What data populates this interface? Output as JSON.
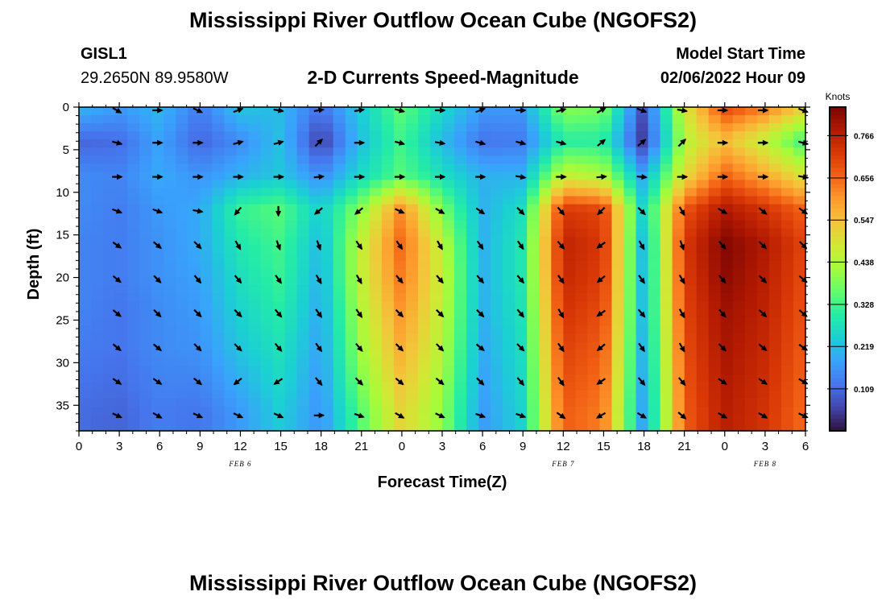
{
  "header": {
    "title": "Mississippi River Outflow Ocean Cube (NGOFS2)",
    "station": "GISL1",
    "coordinates": "29.2650N  89.9580W",
    "subtitle": "2-D Currents Speed-Magnitude",
    "model_start_label": "Model Start Time",
    "model_start_value": "02/06/2022 Hour 09"
  },
  "footer": {
    "title": "Mississippi River Outflow Ocean Cube (NGOFS2)"
  },
  "chart_data": {
    "type": "heatmap",
    "xlabel": "Forecast Time(Z)",
    "ylabel": "Depth (ft)",
    "x_unit": "hours from 00Z Feb 6",
    "xlim": [
      0,
      54
    ],
    "ylim": [
      0,
      38
    ],
    "y_inverted": true,
    "x_ticks": [
      0,
      3,
      6,
      9,
      12,
      15,
      18,
      21,
      24,
      27,
      30,
      33,
      36,
      39,
      42,
      45,
      48,
      51,
      54
    ],
    "x_tick_labels": [
      "0",
      "3",
      "6",
      "9",
      "12",
      "15",
      "18",
      "21",
      "0",
      "3",
      "6",
      "9",
      "12",
      "15",
      "18",
      "21",
      "0",
      "3",
      "6"
    ],
    "y_ticks": [
      0,
      5,
      10,
      15,
      20,
      25,
      30,
      35
    ],
    "y_tick_labels": [
      "0",
      "5",
      "10",
      "15",
      "20",
      "25",
      "30",
      "35"
    ],
    "date_labels": [
      {
        "x": 12,
        "text": "FEB 6"
      },
      {
        "x": 36,
        "text": "FEB 7"
      },
      {
        "x": 51,
        "text": "FEB 8"
      }
    ],
    "colorbar": {
      "unit": "Knots",
      "min": 0.0,
      "max": 0.84,
      "tick_values": [
        0.109,
        0.219,
        0.328,
        0.438,
        0.547,
        0.656,
        0.766
      ],
      "tick_labels": [
        "0.109",
        "0.219",
        "0.328",
        "0.438",
        "0.547",
        "0.656",
        "0.766"
      ],
      "colormap": [
        "#30123b",
        "#4145ab",
        "#4675ed",
        "#39a2fc",
        "#1bcfd4",
        "#24eca6",
        "#61fc6c",
        "#a4fc3b",
        "#d1e834",
        "#f3c63a",
        "#fe9b2d",
        "#f36315",
        "#d93806",
        "#b11901",
        "#7a0403"
      ]
    },
    "speed_grid": {
      "times": [
        0,
        3,
        6,
        9,
        12,
        15,
        18,
        21,
        24,
        27,
        30,
        33,
        36,
        39,
        42,
        45,
        48,
        51,
        54
      ],
      "depths": [
        0,
        4,
        8,
        12,
        16,
        20,
        24,
        28,
        32,
        36
      ],
      "values": [
        [
          0.21,
          0.17,
          0.21,
          0.13,
          0.23,
          0.21,
          0.12,
          0.24,
          0.36,
          0.26,
          0.17,
          0.17,
          0.4,
          0.38,
          0.07,
          0.48,
          0.7,
          0.64,
          0.52
        ],
        [
          0.1,
          0.11,
          0.18,
          0.1,
          0.15,
          0.22,
          0.05,
          0.22,
          0.33,
          0.21,
          0.12,
          0.13,
          0.3,
          0.3,
          0.04,
          0.44,
          0.55,
          0.45,
          0.32
        ],
        [
          0.15,
          0.14,
          0.19,
          0.16,
          0.2,
          0.23,
          0.15,
          0.26,
          0.35,
          0.27,
          0.2,
          0.2,
          0.46,
          0.43,
          0.18,
          0.5,
          0.66,
          0.58,
          0.48
        ],
        [
          0.15,
          0.13,
          0.17,
          0.19,
          0.32,
          0.35,
          0.24,
          0.4,
          0.62,
          0.38,
          0.2,
          0.27,
          0.72,
          0.7,
          0.24,
          0.68,
          0.78,
          0.73,
          0.66
        ],
        [
          0.14,
          0.13,
          0.16,
          0.19,
          0.29,
          0.33,
          0.21,
          0.46,
          0.66,
          0.45,
          0.2,
          0.29,
          0.76,
          0.72,
          0.2,
          0.72,
          0.83,
          0.78,
          0.7
        ],
        [
          0.14,
          0.13,
          0.16,
          0.18,
          0.27,
          0.32,
          0.2,
          0.46,
          0.64,
          0.46,
          0.2,
          0.29,
          0.75,
          0.71,
          0.2,
          0.71,
          0.82,
          0.77,
          0.69
        ],
        [
          0.14,
          0.12,
          0.15,
          0.17,
          0.25,
          0.3,
          0.19,
          0.44,
          0.61,
          0.45,
          0.2,
          0.28,
          0.73,
          0.69,
          0.2,
          0.7,
          0.8,
          0.76,
          0.68
        ],
        [
          0.13,
          0.12,
          0.15,
          0.16,
          0.23,
          0.28,
          0.18,
          0.42,
          0.58,
          0.44,
          0.19,
          0.27,
          0.71,
          0.67,
          0.19,
          0.69,
          0.79,
          0.75,
          0.67
        ],
        [
          0.12,
          0.11,
          0.14,
          0.14,
          0.2,
          0.26,
          0.17,
          0.39,
          0.55,
          0.42,
          0.18,
          0.26,
          0.69,
          0.65,
          0.18,
          0.68,
          0.78,
          0.74,
          0.66
        ],
        [
          0.11,
          0.1,
          0.13,
          0.12,
          0.17,
          0.24,
          0.16,
          0.35,
          0.52,
          0.4,
          0.17,
          0.25,
          0.67,
          0.63,
          0.17,
          0.67,
          0.77,
          0.73,
          0.65
        ]
      ]
    },
    "vector_times": [
      3,
      6,
      9,
      12,
      15,
      18,
      21,
      24,
      27,
      30,
      33,
      36,
      39,
      42,
      45,
      48,
      51,
      54
    ],
    "vector_depths": [
      0,
      4,
      8,
      12,
      16,
      20,
      24,
      28,
      32,
      36
    ],
    "vector_directions_deg": [
      [
        -30,
        0,
        -25,
        20,
        -10,
        10,
        10,
        -15,
        0,
        20,
        0,
        15,
        30,
        -20,
        -10,
        0,
        0,
        -20
      ],
      [
        -15,
        0,
        0,
        15,
        15,
        45,
        0,
        -15,
        -10,
        -15,
        -15,
        -15,
        40,
        40,
        45,
        0,
        0,
        -15
      ],
      [
        0,
        0,
        0,
        0,
        0,
        5,
        0,
        0,
        0,
        0,
        -10,
        0,
        5,
        -5,
        0,
        0,
        0,
        -10
      ],
      [
        -20,
        -20,
        -10,
        230,
        -90,
        220,
        220,
        -25,
        -30,
        -35,
        -45,
        -50,
        225,
        -45,
        -60,
        -30,
        -40,
        -35
      ],
      [
        -35,
        -40,
        -45,
        -60,
        -70,
        -70,
        -55,
        -55,
        -60,
        -55,
        -55,
        -50,
        215,
        -60,
        -70,
        -50,
        -45,
        -45
      ],
      [
        -40,
        -45,
        -50,
        -50,
        -55,
        -60,
        -60,
        -50,
        -50,
        -50,
        -50,
        -55,
        220,
        -55,
        -60,
        -50,
        -45,
        -40
      ],
      [
        -40,
        -45,
        -45,
        -45,
        -50,
        -55,
        -55,
        -45,
        -45,
        -45,
        -50,
        -60,
        215,
        -50,
        -60,
        -50,
        -45,
        -40
      ],
      [
        -40,
        -40,
        -45,
        -45,
        -50,
        -55,
        -50,
        -45,
        -45,
        -40,
        -45,
        -55,
        220,
        -55,
        -60,
        -45,
        -40,
        -35
      ],
      [
        -35,
        -35,
        -40,
        220,
        215,
        -50,
        -45,
        -40,
        -40,
        -45,
        -50,
        -55,
        215,
        -50,
        -50,
        -35,
        -35,
        -30
      ],
      [
        -25,
        -30,
        -25,
        -25,
        -25,
        0,
        -20,
        -30,
        -25,
        -20,
        -20,
        -35,
        210,
        -30,
        -40,
        -30,
        -30,
        -25
      ]
    ]
  }
}
